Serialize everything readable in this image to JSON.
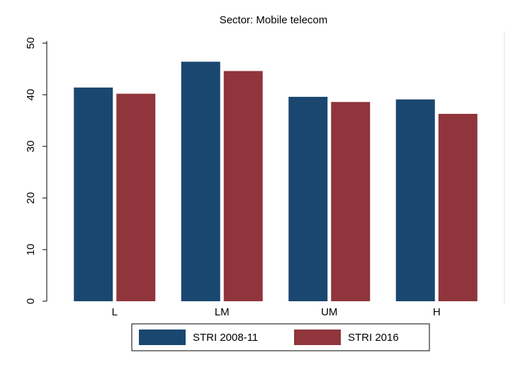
{
  "chart_data": {
    "type": "bar",
    "title": "Sector: Mobile telecom",
    "categories": [
      "L",
      "LM",
      "UM",
      "H"
    ],
    "series": [
      {
        "name": "STRI 2008-11",
        "color": "#1a476f",
        "values": [
          41.4,
          46.4,
          39.6,
          39.1
        ]
      },
      {
        "name": "STRI 2016",
        "color": "#90353b",
        "values": [
          40.2,
          44.6,
          38.6,
          36.3
        ]
      }
    ],
    "ylim": [
      0,
      50
    ],
    "yticks": [
      0,
      10,
      20,
      30,
      40,
      50
    ],
    "grid": false,
    "legend": "bottom"
  }
}
